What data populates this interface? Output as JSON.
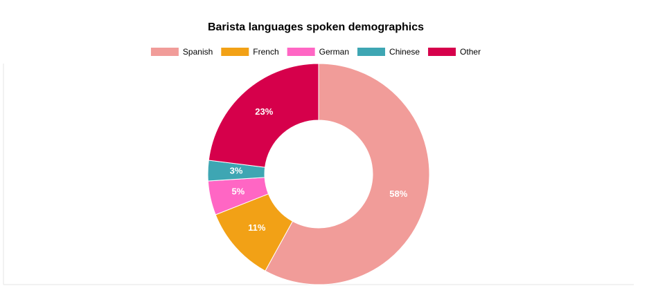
{
  "chart_data": {
    "type": "doughnut",
    "title": "Barista languages spoken demographics",
    "categories": [
      "Spanish",
      "French",
      "German",
      "Chinese",
      "Other"
    ],
    "values": [
      58,
      11,
      5,
      3,
      23
    ],
    "value_labels": [
      "58%",
      "11%",
      "5%",
      "3%",
      "23%"
    ],
    "colors": [
      "#f19c99",
      "#f2a116",
      "#ff66c4",
      "#3ea6b3",
      "#d6004b"
    ],
    "legend": "top"
  }
}
